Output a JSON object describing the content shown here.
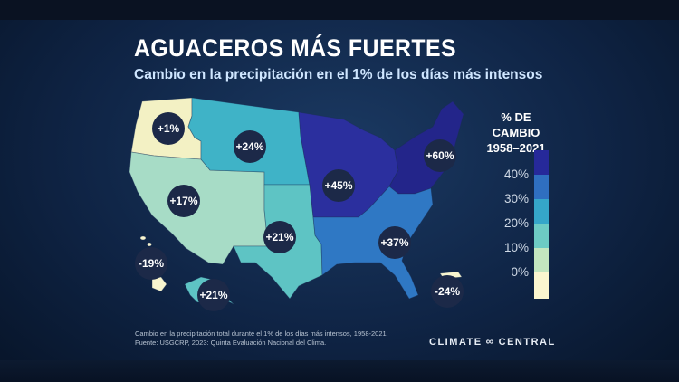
{
  "title": "AGUACEROS MÁS FUERTES",
  "subtitle": "Cambio en la precipitación en el 1% de los días más intensos",
  "legend": {
    "title_line1": "% DE CAMBIO",
    "title_line2": "1958–2021",
    "ticks": [
      "40%",
      "30%",
      "20%",
      "10%",
      "0%"
    ],
    "colors": [
      "#2b2f9e",
      "#2f78c4",
      "#3fb3c7",
      "#a7dcc6",
      "#f8f5cf"
    ]
  },
  "regions": [
    {
      "id": "northwest",
      "label": "+1%",
      "color": "#f3f1c4"
    },
    {
      "id": "northern-rockies-plains",
      "label": "+24%",
      "color": "#3fb3c7"
    },
    {
      "id": "southwest",
      "label": "+17%",
      "color": "#a7dcc6"
    },
    {
      "id": "southern-plains",
      "label": "+21%",
      "color": "#5ec4c4"
    },
    {
      "id": "midwest",
      "label": "+45%",
      "color": "#2b2f9e"
    },
    {
      "id": "northeast",
      "label": "+60%",
      "color": "#23258a"
    },
    {
      "id": "southeast",
      "label": "+37%",
      "color": "#2f78c4"
    },
    {
      "id": "hawaii",
      "label": "-19%",
      "color": "#f8f5cf"
    },
    {
      "id": "alaska",
      "label": "+21%",
      "color": "#5ec4c4"
    },
    {
      "id": "puerto-rico",
      "label": "-24%",
      "color": "#f8f5cf"
    }
  ],
  "footnote": {
    "line1": "Cambio en la precipitación total durante el 1% de los días más intensos, 1958-2021.",
    "line2": "Fuente: USGCRP, 2023: Quinta Evaluación Nacional del Clima."
  },
  "brand": {
    "left": "CLIMATE",
    "right": "CENTRAL",
    "logo": "∞"
  }
}
